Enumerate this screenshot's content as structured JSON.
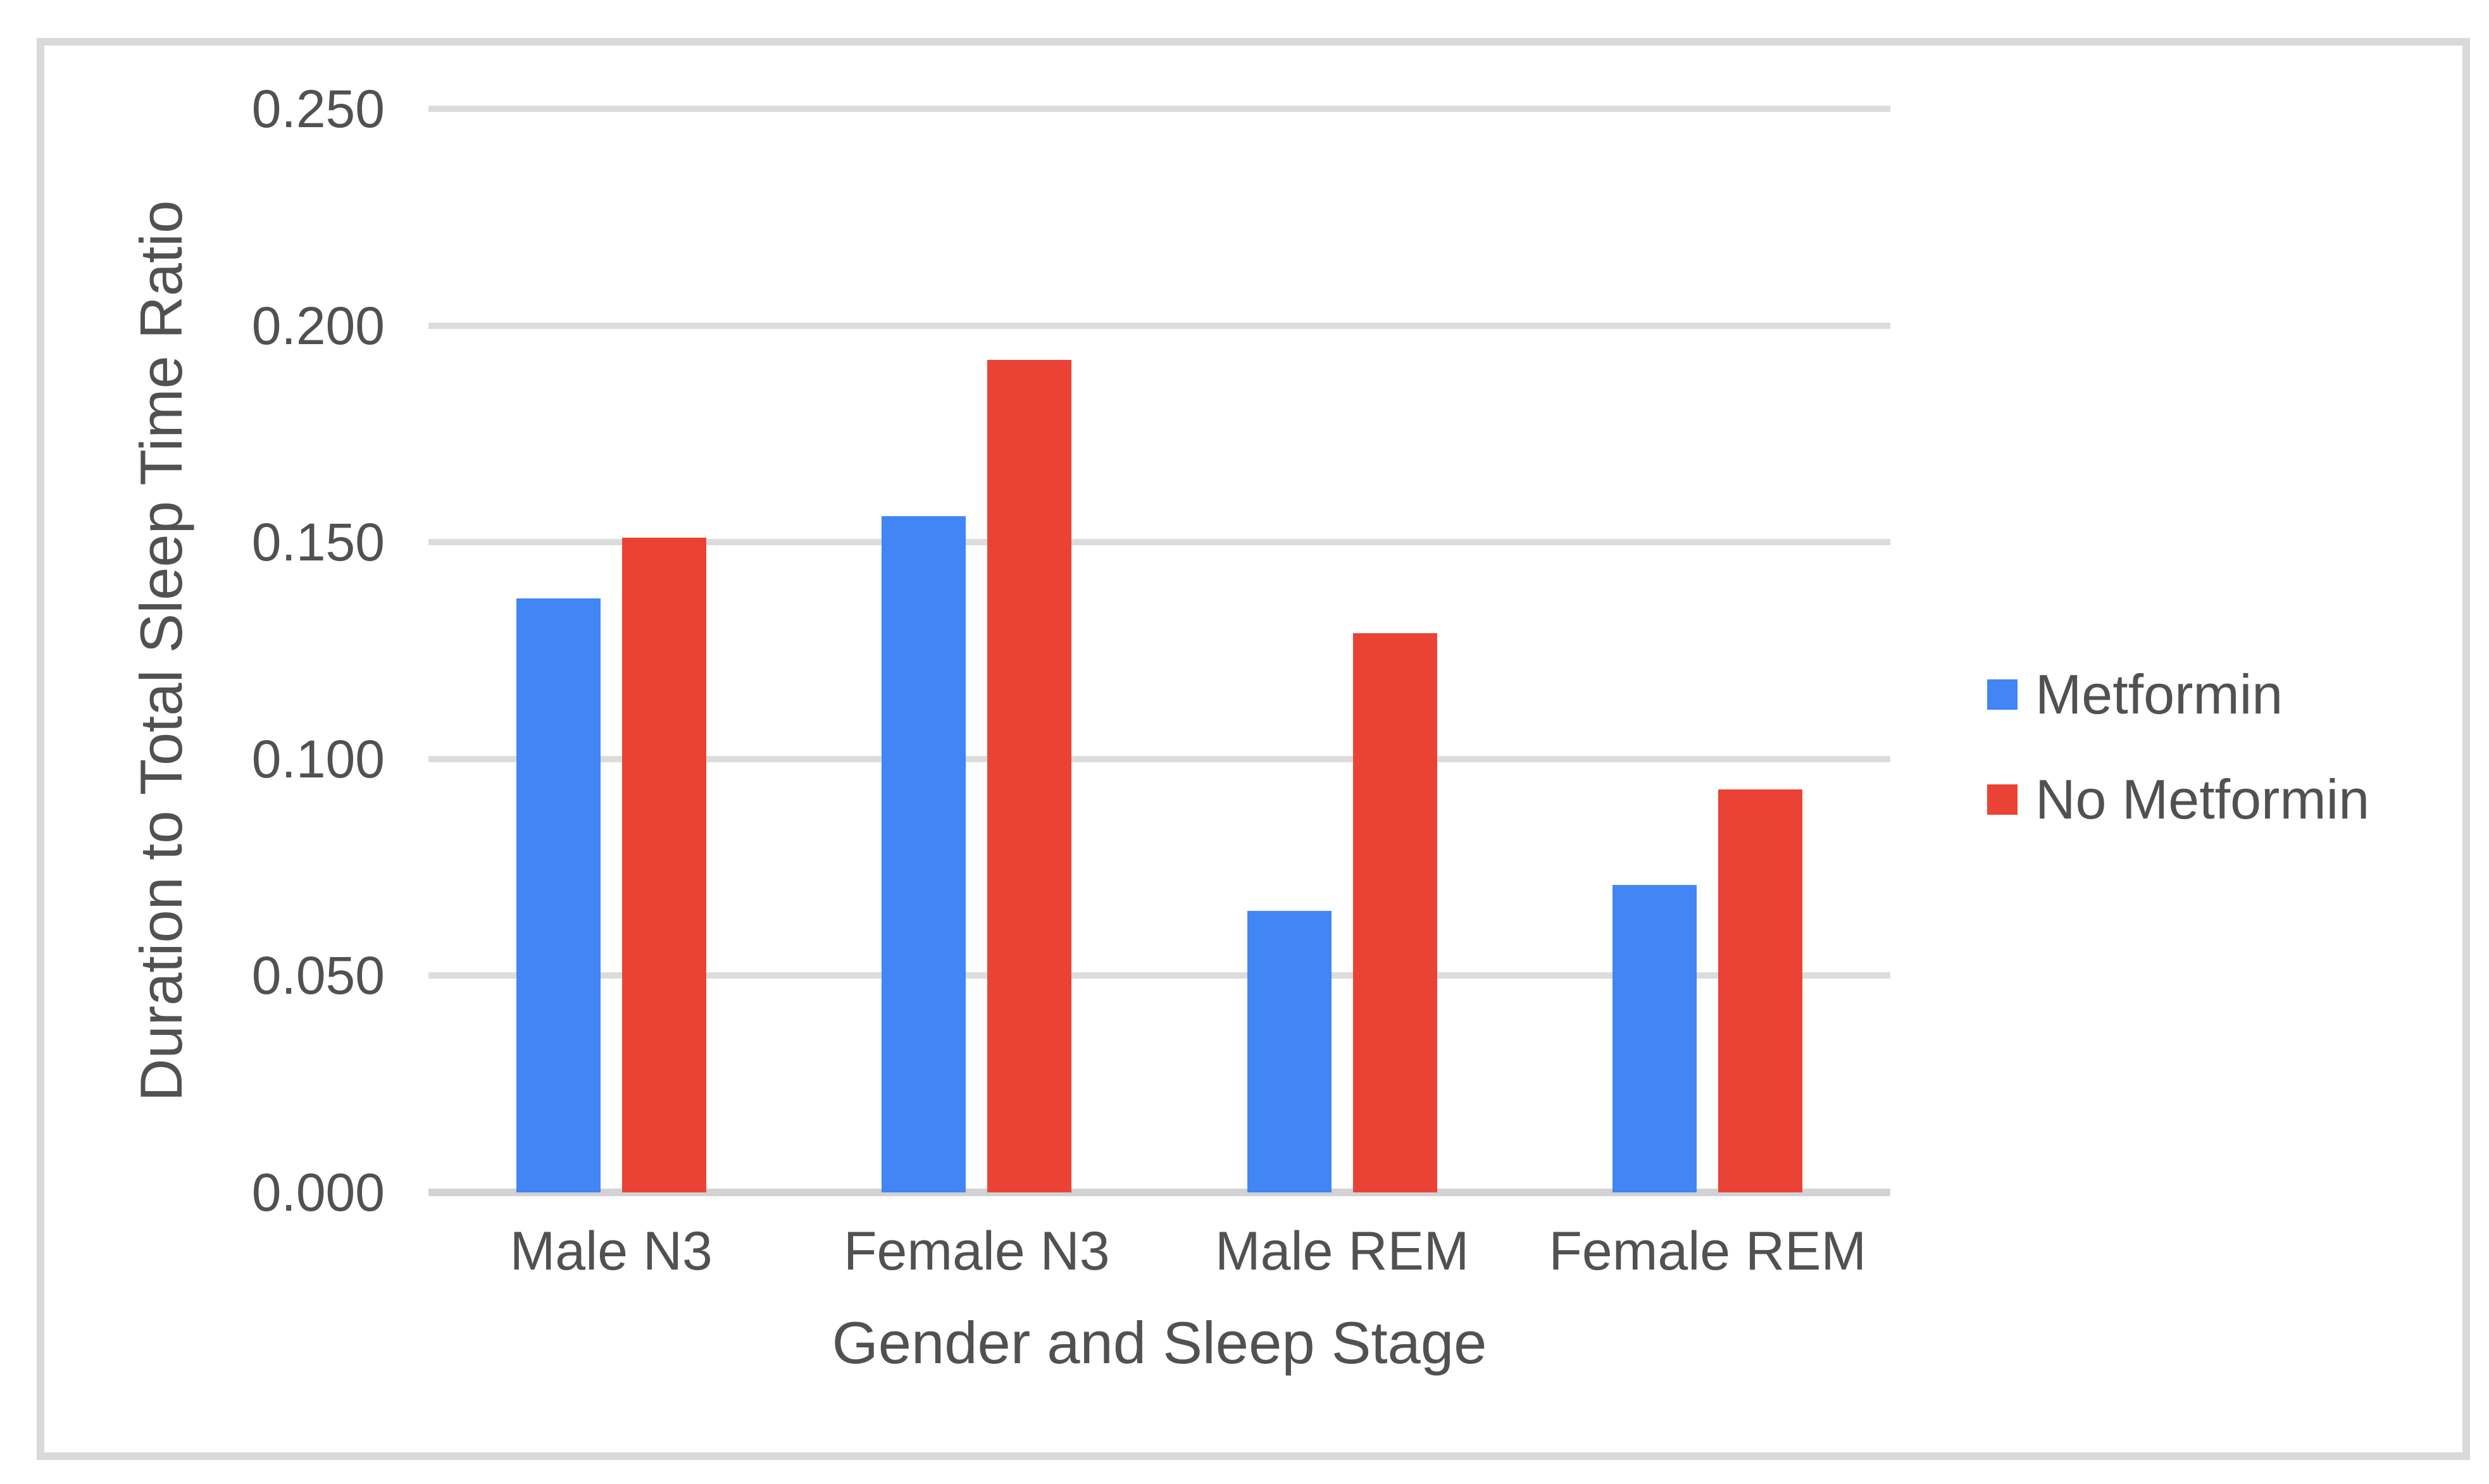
{
  "chart_data": {
    "type": "bar",
    "title": "",
    "categories": [
      "Male N3",
      "Female N3",
      "Male REM",
      "Female REM"
    ],
    "series": [
      {
        "name": "Metformin",
        "color": "#4285F4",
        "values": [
          0.137,
          0.156,
          0.065,
          0.071
        ]
      },
      {
        "name": "No Metformin",
        "color": "#EA4335",
        "values": [
          0.151,
          0.192,
          0.129,
          0.093
        ]
      }
    ],
    "xlabel": "Gender and Sleep Stage",
    "ylabel": "Duration to Total Sleep Time Ratio",
    "ylim": [
      0,
      0.25
    ],
    "yticks": {
      "values": [
        0,
        0.05,
        0.1,
        0.15,
        0.2,
        0.25
      ],
      "labels": [
        "0.000",
        "0.050",
        "0.100",
        "0.150",
        "0.200",
        "0.250"
      ]
    },
    "grid": true,
    "legend_position": "right"
  },
  "legend": {
    "items": [
      {
        "label": "Metformin",
        "color": "#4285F4"
      },
      {
        "label": "No Metformin",
        "color": "#EA4335"
      }
    ]
  },
  "colors": {
    "bar_blue": "#4285F4",
    "bar_red": "#EA4335",
    "gridline": "#dcdcdc",
    "frame_border": "#d9d9d9",
    "text": "#515151",
    "background": "#ffffff"
  }
}
